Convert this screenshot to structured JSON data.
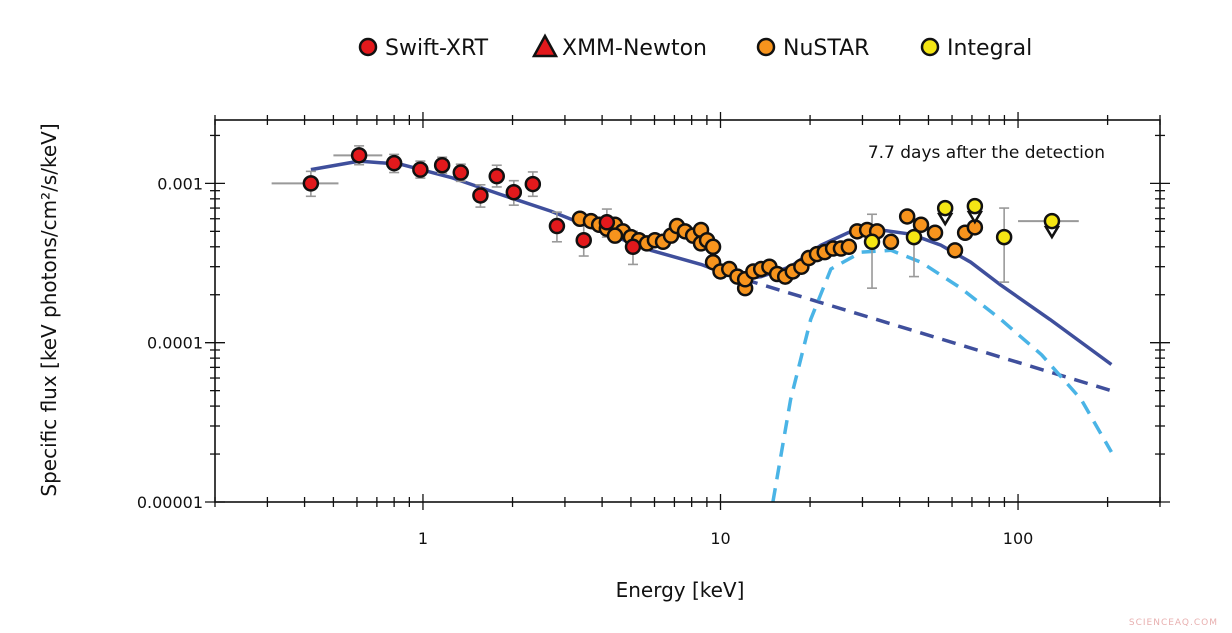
{
  "chart_data": {
    "type": "scatter",
    "title": "",
    "xlabel": "Energy [keV]",
    "ylabel": "Specific flux [keV photons/cm²/s/keV]",
    "xscale": "log",
    "yscale": "log",
    "xlim": [
      0.2,
      300
    ],
    "ylim": [
      1e-05,
      0.0025
    ],
    "x_ticks": [
      {
        "value": 1,
        "label": "1"
      },
      {
        "value": 10,
        "label": "10"
      },
      {
        "value": 100,
        "label": "100"
      }
    ],
    "y_ticks": [
      {
        "value": 0.001,
        "label": "0.001"
      },
      {
        "value": 0.0001,
        "label": "0.0001"
      },
      {
        "value": 1e-05,
        "label": "0.00001"
      }
    ],
    "grid": false,
    "legend_placement": "top (above plot)",
    "annotation": "7.7 days after the detection",
    "legend": [
      {
        "name": "Swift-XRT",
        "marker": "circle",
        "color": "#e3191c"
      },
      {
        "name": "XMM-Newton",
        "marker": "triangle",
        "color": "#e3191c"
      },
      {
        "name": "NuSTAR",
        "marker": "circle",
        "color": "#f7941d"
      },
      {
        "name": "Integral",
        "marker": "circle",
        "color": "#f5e614"
      }
    ],
    "series": [
      {
        "name": "Swift-XRT",
        "color": "#e3191c",
        "points": [
          {
            "x": 0.42,
            "y": 0.001,
            "ylo": 0.00083,
            "yhi": 0.00119,
            "xlo": 0.31,
            "xhi": 0.52
          },
          {
            "x": 0.61,
            "y": 0.0015,
            "ylo": 0.00131,
            "yhi": 0.00172,
            "xlo": 0.5,
            "xhi": 0.73
          },
          {
            "x": 0.8,
            "y": 0.00134,
            "ylo": 0.00117,
            "yhi": 0.00152
          },
          {
            "x": 0.98,
            "y": 0.00122,
            "ylo": 0.00108,
            "yhi": 0.00138
          },
          {
            "x": 1.16,
            "y": 0.0013,
            "ylo": 0.00116,
            "yhi": 0.00146
          },
          {
            "x": 1.34,
            "y": 0.00117,
            "ylo": 0.00103,
            "yhi": 0.00132
          },
          {
            "x": 1.56,
            "y": 0.00084,
            "ylo": 0.00071,
            "yhi": 0.00098
          },
          {
            "x": 1.77,
            "y": 0.00111,
            "ylo": 0.00095,
            "yhi": 0.0013
          },
          {
            "x": 2.02,
            "y": 0.00088,
            "ylo": 0.00073,
            "yhi": 0.00104
          },
          {
            "x": 2.34,
            "y": 0.00099,
            "ylo": 0.00083,
            "yhi": 0.00118
          },
          {
            "x": 2.82,
            "y": 0.00054,
            "ylo": 0.00043,
            "yhi": 0.00066
          },
          {
            "x": 3.47,
            "y": 0.00044,
            "ylo": 0.00035,
            "yhi": 0.00055
          },
          {
            "x": 4.15,
            "y": 0.00057,
            "ylo": 0.00046,
            "yhi": 0.00069
          },
          {
            "x": 5.08,
            "y": 0.0004,
            "ylo": 0.00031,
            "yhi": 0.0005
          }
        ]
      },
      {
        "name": "XMM-Newton",
        "color": "#e3191c",
        "points": []
      },
      {
        "name": "NuSTAR",
        "color": "#f7941d",
        "points": [
          {
            "x": 3.37,
            "y": 0.0006
          },
          {
            "x": 3.67,
            "y": 0.00058
          },
          {
            "x": 3.91,
            "y": 0.00055
          },
          {
            "x": 4.15,
            "y": 0.00052
          },
          {
            "x": 4.42,
            "y": 0.00055
          },
          {
            "x": 4.7,
            "y": 0.0005
          },
          {
            "x": 4.42,
            "y": 0.00047
          },
          {
            "x": 5.0,
            "y": 0.00046
          },
          {
            "x": 5.32,
            "y": 0.00044
          },
          {
            "x": 5.66,
            "y": 0.00042
          },
          {
            "x": 6.02,
            "y": 0.00044
          },
          {
            "x": 6.41,
            "y": 0.00043
          },
          {
            "x": 6.82,
            "y": 0.00047
          },
          {
            "x": 7.14,
            "y": 0.00054
          },
          {
            "x": 7.6,
            "y": 0.0005
          },
          {
            "x": 8.09,
            "y": 0.00047
          },
          {
            "x": 8.6,
            "y": 0.00051
          },
          {
            "x": 8.6,
            "y": 0.00042
          },
          {
            "x": 9.01,
            "y": 0.00044
          },
          {
            "x": 9.44,
            "y": 0.0004
          },
          {
            "x": 9.44,
            "y": 0.00032
          },
          {
            "x": 10.0,
            "y": 0.00028
          },
          {
            "x": 10.7,
            "y": 0.00029
          },
          {
            "x": 11.4,
            "y": 0.00026
          },
          {
            "x": 12.1,
            "y": 0.00022
          },
          {
            "x": 12.1,
            "y": 0.00025
          },
          {
            "x": 12.9,
            "y": 0.00028
          },
          {
            "x": 13.7,
            "y": 0.00029
          },
          {
            "x": 14.6,
            "y": 0.0003
          },
          {
            "x": 15.5,
            "y": 0.00027
          },
          {
            "x": 16.5,
            "y": 0.00026
          },
          {
            "x": 17.5,
            "y": 0.00028
          },
          {
            "x": 18.7,
            "y": 0.0003
          },
          {
            "x": 19.8,
            "y": 0.00034
          },
          {
            "x": 21.1,
            "y": 0.00036
          },
          {
            "x": 22.4,
            "y": 0.00037
          },
          {
            "x": 23.9,
            "y": 0.00039
          },
          {
            "x": 25.4,
            "y": 0.00039
          },
          {
            "x": 27.0,
            "y": 0.0004
          },
          {
            "x": 28.8,
            "y": 0.0005
          },
          {
            "x": 31.1,
            "y": 0.00051
          },
          {
            "x": 33.6,
            "y": 0.0005
          },
          {
            "x": 37.4,
            "y": 0.00043
          },
          {
            "x": 42.4,
            "y": 0.00062
          },
          {
            "x": 47.2,
            "y": 0.00055
          },
          {
            "x": 52.6,
            "y": 0.00049
          },
          {
            "x": 61.4,
            "y": 0.00038
          },
          {
            "x": 66.4,
            "y": 0.00049
          },
          {
            "x": 71.6,
            "y": 0.00053
          }
        ]
      },
      {
        "name": "Integral",
        "color": "#f5e614",
        "points": [
          {
            "x": 32.3,
            "y": 0.00043,
            "ylo": 0.00022,
            "yhi": 0.00064
          },
          {
            "x": 44.7,
            "y": 0.00046,
            "ylo": 0.00026,
            "yhi": 0.0006
          },
          {
            "x": 56.9,
            "y": 0.0007,
            "ylo": 0.00064,
            "yhi": 0.00076,
            "upper_limit_marker": true
          },
          {
            "x": 71.6,
            "y": 0.00072,
            "ylo": 0.00066,
            "yhi": 0.00078,
            "upper_limit_marker": true
          },
          {
            "x": 89.8,
            "y": 0.00046,
            "ylo": 0.00024,
            "yhi": 0.0007
          },
          {
            "x": 130,
            "y": 0.00058,
            "xlo": 100,
            "xhi": 160,
            "upper_limit_marker": true
          }
        ]
      }
    ],
    "models": [
      {
        "style": "solid",
        "color": "#3f4f9c",
        "points": [
          [
            0.42,
            0.00122
          ],
          [
            0.61,
            0.00138
          ],
          [
            0.84,
            0.00132
          ],
          [
            1.24,
            0.00109
          ],
          [
            1.83,
            0.00085
          ],
          [
            2.69,
            0.00067
          ],
          [
            3.97,
            0.0005
          ],
          [
            5.83,
            0.00038
          ],
          [
            8.6,
            0.00031
          ],
          [
            11.7,
            0.00025
          ],
          [
            13.7,
            0.00026
          ],
          [
            17.2,
            0.0003
          ],
          [
            21.8,
            0.00041
          ],
          [
            27.5,
            0.0005
          ],
          [
            34.6,
            0.00051
          ],
          [
            43.6,
            0.00048
          ],
          [
            55.0,
            0.00041
          ],
          [
            69.3,
            0.00032
          ],
          [
            87.5,
            0.00023
          ],
          [
            128,
            0.00014
          ],
          [
            206,
            7.3e-05
          ]
        ]
      },
      {
        "style": "dashed",
        "color": "#3f4f9c",
        "points": [
          [
            12,
            0.00025
          ],
          [
            206,
            5e-05
          ]
        ]
      },
      {
        "style": "dashed",
        "color": "#4ab4e6",
        "points": [
          [
            15.0,
            1e-05
          ],
          [
            17.2,
            4.4e-05
          ],
          [
            20.1,
            0.00014
          ],
          [
            23.5,
            0.00029
          ],
          [
            29.7,
            0.00037
          ],
          [
            37.4,
            0.00038
          ],
          [
            47.2,
            0.00032
          ],
          [
            64.2,
            0.00022
          ],
          [
            87.5,
            0.00014
          ],
          [
            120,
            8.4e-05
          ],
          [
            163,
            4.4e-05
          ],
          [
            206,
            2.06e-05
          ]
        ]
      }
    ]
  },
  "watermark": "SCIENCEAQ.COM"
}
